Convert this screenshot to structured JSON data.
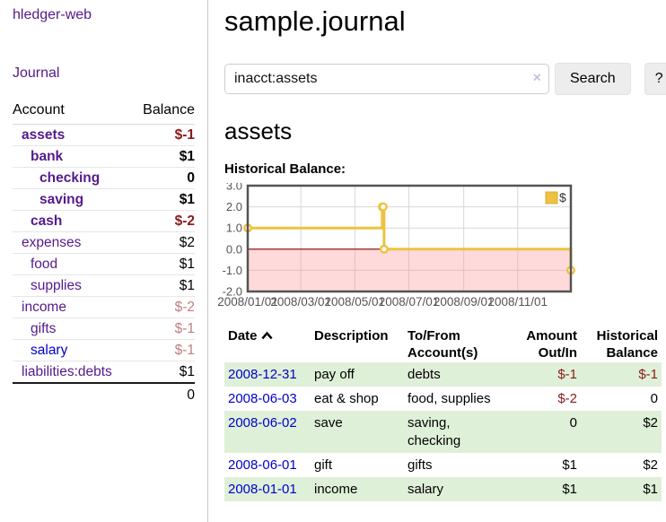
{
  "colors": {
    "purple_link": "#551a8b",
    "blue_link": "#0000cc",
    "negative": "#8b1a1a",
    "negative_muted": "#c07e80",
    "row_green": "#dff0d8",
    "gold": "#edc240",
    "gold_border": "#d9ae35",
    "zero_line": "#8b0000",
    "axis_text": "#545454",
    "plot_border": "#545454",
    "negative_region": "rgba(255,150,150,0.35)",
    "gridline": "#d8d8d8"
  },
  "app": {
    "brand": "hledger-web"
  },
  "sidebar": {
    "journal_label": "Journal",
    "accounts": {
      "header_account": "Account",
      "header_balance": "Balance",
      "rows": [
        {
          "account": "assets",
          "balance": "$-1",
          "depth": 1,
          "bold": true,
          "neg": "strong"
        },
        {
          "account": "bank",
          "balance": "$1",
          "depth": 2,
          "bold": true,
          "neg": null
        },
        {
          "account": "checking",
          "balance": "0",
          "depth": 3,
          "bold": true,
          "neg": null
        },
        {
          "account": "saving",
          "balance": "$1",
          "depth": 3,
          "bold": true,
          "neg": null
        },
        {
          "account": "cash",
          "balance": "$-2",
          "depth": 2,
          "bold": true,
          "neg": "strong"
        },
        {
          "account": "expenses",
          "balance": "$2",
          "depth": 1,
          "bold": false,
          "neg": null
        },
        {
          "account": "food",
          "balance": "$1",
          "depth": 2,
          "bold": false,
          "neg": null
        },
        {
          "account": "supplies",
          "balance": "$1",
          "depth": 2,
          "bold": false,
          "neg": null
        },
        {
          "account": "income",
          "balance": "$-2",
          "depth": 1,
          "bold": false,
          "neg": "muted"
        },
        {
          "account": "gifts",
          "balance": "$-1",
          "depth": 2,
          "bold": false,
          "neg": "muted"
        },
        {
          "account": "salary",
          "balance": "$-1",
          "depth": 2,
          "bold": false,
          "neg": "muted",
          "link": "blue"
        },
        {
          "account": "liabilities:debts",
          "balance": "$1",
          "depth": 1,
          "bold": false,
          "neg": null
        }
      ],
      "total": "0"
    }
  },
  "main": {
    "title": "sample.journal",
    "search": {
      "value": "inacct:assets",
      "clear_icon": "×",
      "button_label": "Search",
      "help_label": "?"
    },
    "account_heading": "assets",
    "section_label": "Historical Balance:",
    "register": {
      "headers": [
        {
          "line1": "Date",
          "line2": "",
          "align": "left",
          "sortable": true
        },
        {
          "line1": "Description",
          "line2": "",
          "align": "left",
          "sortable": false
        },
        {
          "line1": "To/From",
          "line2": "Account(s)",
          "align": "left",
          "sortable": false
        },
        {
          "line1": "Amount",
          "line2": "Out/In",
          "align": "right",
          "sortable": false
        },
        {
          "line1": "Historical",
          "line2": "Balance",
          "align": "right",
          "sortable": false
        }
      ],
      "rows": [
        {
          "date": "2008-12-31",
          "description": "pay off",
          "accounts": "debts",
          "amount": "$-1",
          "amount_neg": true,
          "balance": "$-1",
          "balance_neg": true,
          "green": true
        },
        {
          "date": "2008-06-03",
          "description": "eat & shop",
          "accounts": "food, supplies",
          "amount": "$-2",
          "amount_neg": true,
          "balance": "0",
          "balance_neg": false,
          "green": false
        },
        {
          "date": "2008-06-02",
          "description": "save",
          "accounts": "saving, checking",
          "amount": "0",
          "amount_neg": false,
          "balance": "$2",
          "balance_neg": false,
          "green": true
        },
        {
          "date": "2008-06-01",
          "description": "gift",
          "accounts": "gifts",
          "amount": "$1",
          "amount_neg": false,
          "balance": "$2",
          "balance_neg": false,
          "green": false
        },
        {
          "date": "2008-01-01",
          "description": "income",
          "accounts": "salary",
          "amount": "$1",
          "amount_neg": false,
          "balance": "$1",
          "balance_neg": false,
          "green": true
        }
      ]
    }
  },
  "chart_data": {
    "type": "line",
    "style": "step",
    "title": "Historical Balance:",
    "series": [
      {
        "name": "$",
        "points": [
          [
            "2008-01-01",
            1
          ],
          [
            "2008-06-01",
            2
          ],
          [
            "2008-06-02",
            2
          ],
          [
            "2008-06-03",
            0
          ],
          [
            "2008-12-31",
            -1
          ]
        ]
      }
    ],
    "xlim": [
      "2008-01-01",
      "2008-12-31"
    ],
    "ylim": [
      -2,
      3
    ],
    "y_ticks": [
      3.0,
      2.0,
      1.0,
      0.0,
      -1.0,
      -2.0
    ],
    "x_tick_labels": [
      "2008/01/01",
      "2008/03/01",
      "2008/05/01",
      "2008/07/01",
      "2008/09/01",
      "2008/11/01"
    ],
    "legend": {
      "label": "$",
      "position": "top-right"
    },
    "grid": true,
    "negative_region_shaded": true
  }
}
